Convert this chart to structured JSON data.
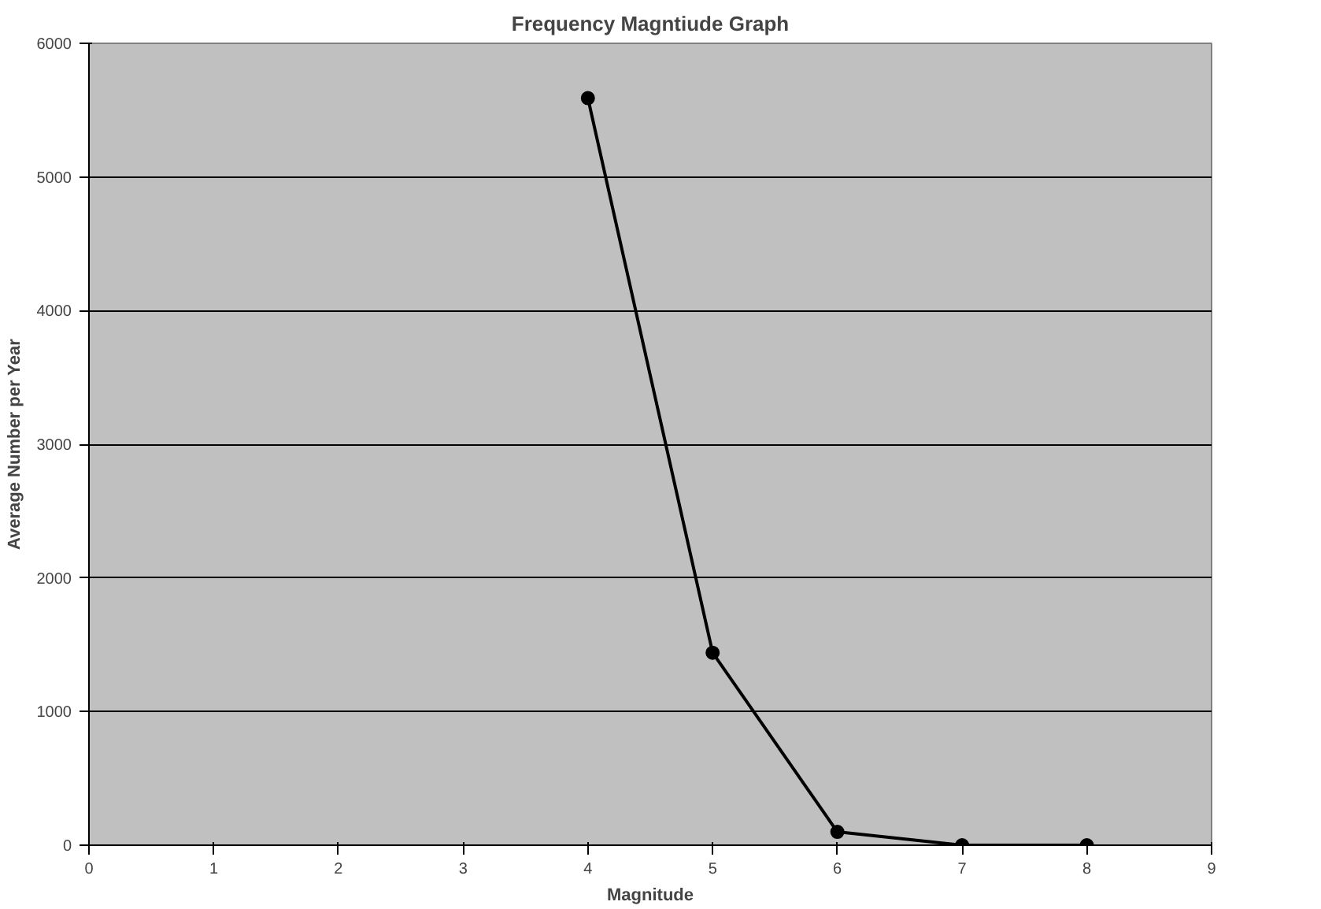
{
  "chart_data": {
    "type": "line",
    "title": "Frequency Magntiude Graph",
    "xlabel": "Magnitude",
    "ylabel": "Average Number per Year",
    "x": [
      4,
      5,
      6,
      7,
      8
    ],
    "series": [
      {
        "color": "#000000",
        "values": [
          5590,
          1440,
          100,
          0,
          0
        ]
      }
    ],
    "xlim": [
      0,
      9
    ],
    "xticks": [
      0,
      1,
      2,
      3,
      4,
      5,
      6,
      7,
      8,
      9
    ],
    "ylim": [
      0,
      6000
    ],
    "yticks": [
      0,
      1000,
      2000,
      3000,
      4000,
      5000,
      6000
    ],
    "grid": "y",
    "marker": "circle",
    "line_style": "solid"
  }
}
